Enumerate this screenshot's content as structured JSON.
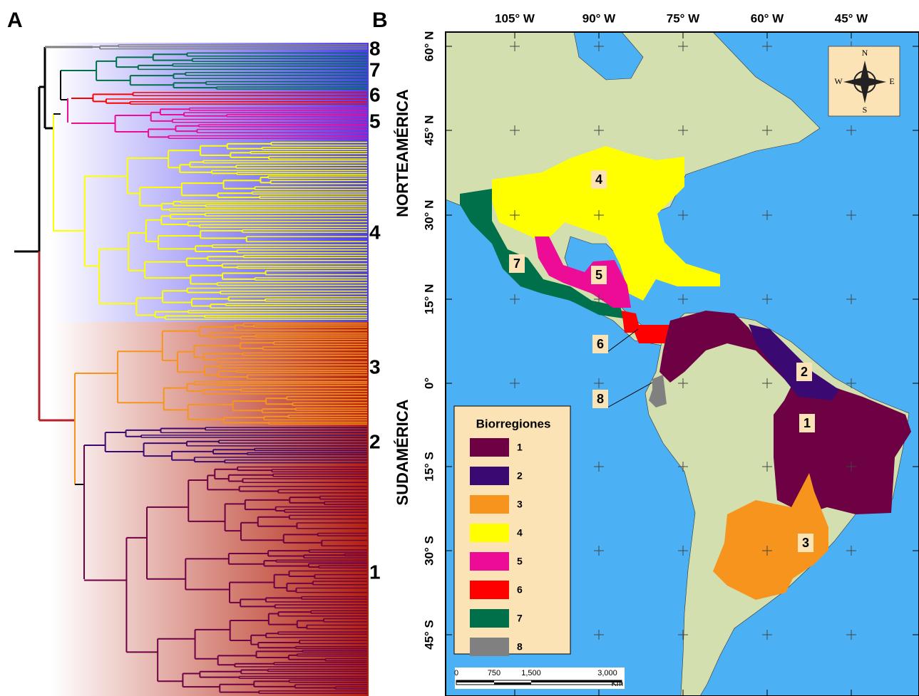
{
  "panel_labels": {
    "a": "A",
    "b": "B"
  },
  "dendrogram": {
    "regions": [
      "NORTEAMÉRICA",
      "SUDAMÉRICA"
    ]
  },
  "map": {
    "longitudes": [
      "105° W",
      "90° W",
      "75° W",
      "60° W",
      "45° W"
    ],
    "latitudes": [
      "60° N",
      "45° N",
      "30° N",
      "15° N",
      "0°",
      "15° S",
      "30° S",
      "45° S"
    ],
    "compass": {
      "n": "N",
      "w": "W",
      "e": "E",
      "s": "S"
    },
    "scale_bar": {
      "labels": [
        "0",
        "750",
        "1,500",
        "3,000"
      ],
      "unit": "Km"
    }
  },
  "legend": {
    "title": "Biorregiones",
    "items": [
      {
        "label": "1",
        "color": "#6e0044"
      },
      {
        "label": "2",
        "color": "#3a0a72"
      },
      {
        "label": "3",
        "color": "#f7941d"
      },
      {
        "label": "4",
        "color": "#ffff00"
      },
      {
        "label": "5",
        "color": "#ec0c95"
      },
      {
        "label": "6",
        "color": "#ff0000"
      },
      {
        "label": "7",
        "color": "#00704a"
      },
      {
        "label": "8",
        "color": "#808080"
      }
    ]
  }
}
